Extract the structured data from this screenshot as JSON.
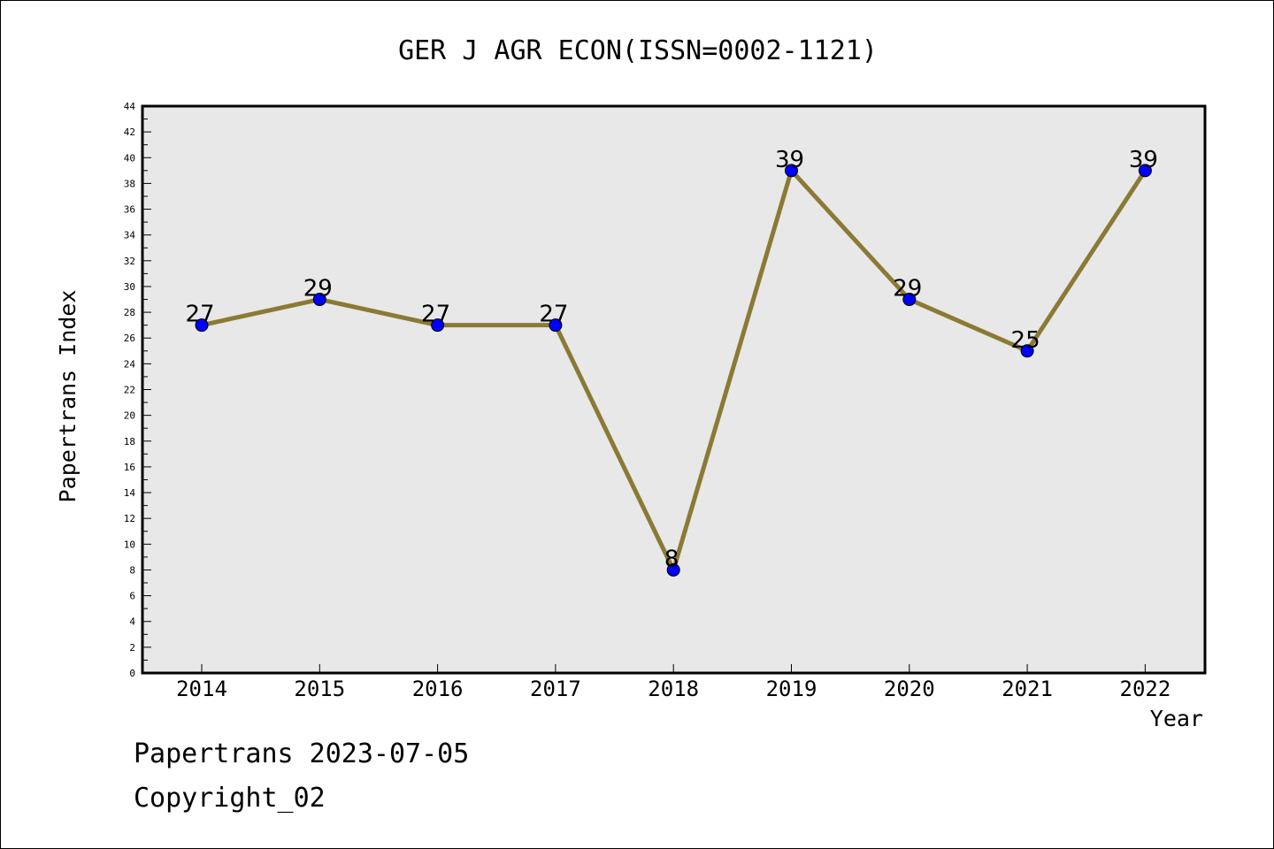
{
  "chart_data": {
    "type": "line",
    "title": "GER J AGR ECON(ISSN=0002-1121)",
    "xlabel": "Year",
    "ylabel": "Papertrans Index",
    "categories": [
      "2014",
      "2015",
      "2016",
      "2017",
      "2018",
      "2019",
      "2020",
      "2021",
      "2022"
    ],
    "series": [
      {
        "values": [
          27,
          29,
          27,
          27,
          8,
          39,
          29,
          25,
          39
        ]
      }
    ],
    "data_labels": [
      "27",
      "29",
      "27",
      "27",
      "8",
      "39",
      "29",
      "25",
      "39"
    ],
    "ylim": [
      0,
      44
    ],
    "ytick_step": 2,
    "yticks": [
      "0",
      "2",
      "4",
      "6",
      "8",
      "10",
      "12",
      "14",
      "16",
      "18",
      "20",
      "22",
      "24",
      "26",
      "28",
      "30",
      "32",
      "34",
      "36",
      "38",
      "40",
      "42",
      "44"
    ],
    "grid": false,
    "legend": "none",
    "colors": {
      "line": "#8b7a35",
      "marker": "#0000ff",
      "plot_background": "#e8e8e8",
      "axis": "#000000"
    }
  },
  "footer": {
    "line1": "Papertrans 2023-07-05",
    "line2": "Copyright_02"
  }
}
